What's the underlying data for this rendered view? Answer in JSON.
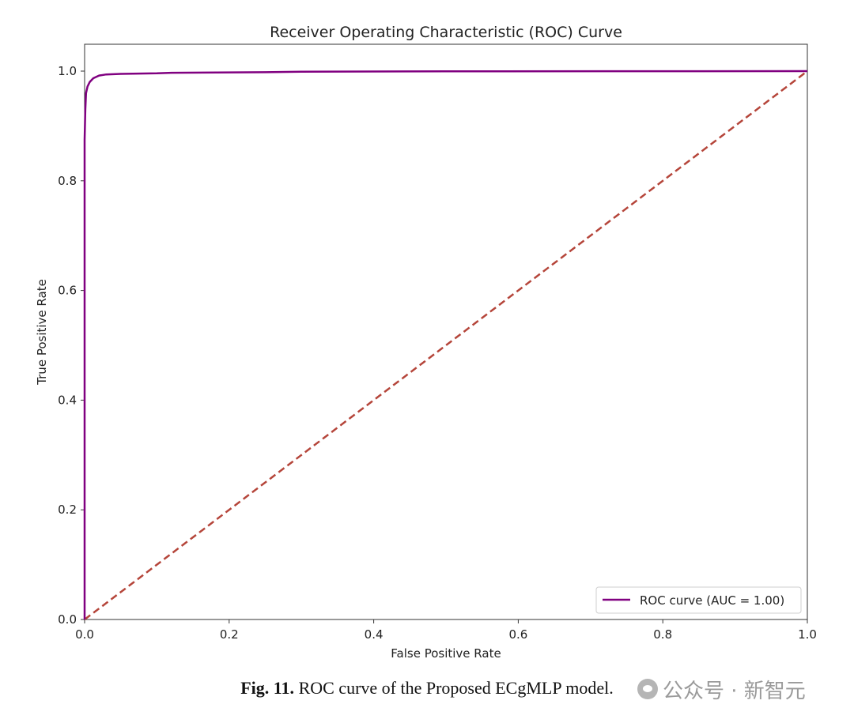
{
  "chart_data": {
    "type": "line",
    "title": "Receiver Operating Characteristic (ROC) Curve",
    "xlabel": "False Positive Rate",
    "ylabel": "True Positive Rate",
    "xlim": [
      0.0,
      1.0
    ],
    "ylim": [
      0.0,
      1.0
    ],
    "xticks": [
      "0.0",
      "0.2",
      "0.4",
      "0.6",
      "0.8",
      "1.0"
    ],
    "yticks": [
      "0.0",
      "0.2",
      "0.4",
      "0.6",
      "0.8",
      "1.0"
    ],
    "grid": false,
    "legend_position": "lower-right",
    "series": [
      {
        "name": "ROC curve (AUC = 1.00)",
        "color": "#800080",
        "style": "solid",
        "x": [
          0.0,
          0.0,
          0.001,
          0.002,
          0.004,
          0.007,
          0.012,
          0.02,
          0.03,
          0.05,
          0.1,
          0.12,
          0.25,
          0.3,
          0.5,
          1.0
        ],
        "y": [
          0.0,
          0.875,
          0.93,
          0.96,
          0.972,
          0.98,
          0.987,
          0.992,
          0.994,
          0.995,
          0.996,
          0.997,
          0.998,
          0.999,
          0.9995,
          1.0
        ]
      },
      {
        "name": "",
        "color": "#b5453a",
        "style": "dashed",
        "x": [
          0.0,
          1.0
        ],
        "y": [
          0.0,
          1.0
        ]
      }
    ]
  },
  "caption": {
    "label": "Fig. 11.",
    "text": "ROC curve of the Proposed ECgMLP model."
  },
  "watermark": {
    "text": "公众号 · 新智元"
  }
}
